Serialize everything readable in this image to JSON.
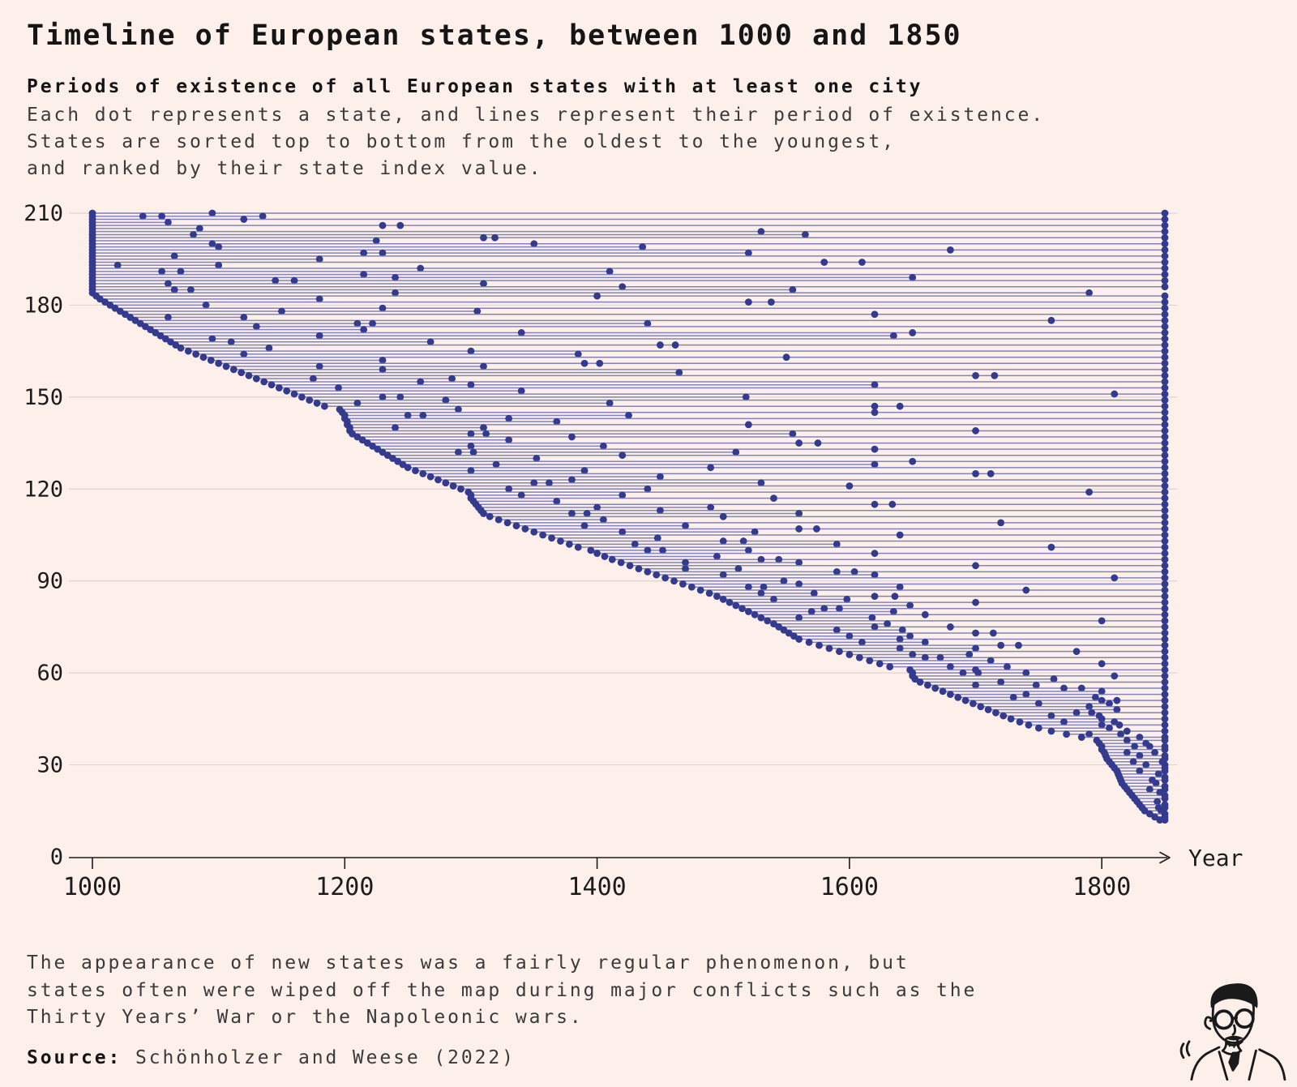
{
  "page": {
    "background": "#fdf0eb"
  },
  "header": {
    "title": "Timeline of European states, between 1000 and 1850",
    "subtitle": "Periods of existence of all European states with at least one city",
    "description_lines": [
      "Each dot represents a state, and lines represent their period of existence.",
      "States are sorted top to bottom from the oldest to the youngest,",
      "and ranked by their state index value."
    ]
  },
  "footer": {
    "note_lines": [
      "The appearance of new states was a fairly regular phenomenon, but",
      "states often were wiped off the map during major conflicts such as the",
      "Thirty Years’ War or the Napoleonic wars."
    ],
    "source_label": "Source:",
    "source_text": " Schönholzer and Weese (2022)",
    "logo": "man-with-glasses-caricature"
  },
  "chart_data": {
    "type": "scatter",
    "variant": "dumbbell-timeline",
    "title": "Timeline of European states, between 1000 and 1850",
    "xlabel": "Year",
    "ylabel": "",
    "xlim": [
      1000,
      1850
    ],
    "ylim": [
      0,
      210
    ],
    "x_ticks": [
      1000,
      1200,
      1400,
      1600,
      1800
    ],
    "y_ticks": [
      0,
      30,
      60,
      90,
      120,
      150,
      180,
      210
    ],
    "grid": "horizontal",
    "legend": "none",
    "colors": {
      "dot": "#343a8e",
      "line": "#7478b4",
      "grid": "#ddd5d2",
      "axis": "#1c1c1c",
      "text": "#1c1c1c",
      "background": "#fdf0eb"
    },
    "series_description": "Each row is one state: [state_index, start_year, end_year, [event_years]] (values estimated from plot)",
    "states": [
      [
        210,
        1000,
        1850,
        [
          1095
        ]
      ],
      [
        209,
        1000,
        1135,
        [
          1040,
          1055
        ]
      ],
      [
        208,
        1000,
        1850,
        [
          1120
        ]
      ],
      [
        207,
        1000,
        1060
      ],
      [
        206,
        1000,
        1850,
        [
          1230,
          1244
        ]
      ],
      [
        205,
        1000,
        1085
      ],
      [
        204,
        1000,
        1850,
        [
          1530
        ]
      ],
      [
        203,
        1000,
        1565,
        [
          1080
        ]
      ],
      [
        202,
        1000,
        1850,
        [
          1310,
          1319
        ]
      ],
      [
        201,
        1000,
        1225
      ],
      [
        200,
        1000,
        1850,
        [
          1095,
          1350
        ]
      ],
      [
        199,
        1000,
        1436,
        [
          1100
        ]
      ],
      [
        198,
        1000,
        1850,
        [
          1680
        ]
      ],
      [
        197,
        1000,
        1520,
        [
          1215,
          1230
        ]
      ],
      [
        196,
        1000,
        1850,
        [
          1065
        ]
      ],
      [
        195,
        1000,
        1180
      ],
      [
        194,
        1000,
        1850,
        [
          1580,
          1610
        ]
      ],
      [
        193,
        1000,
        1100,
        [
          1020
        ]
      ],
      [
        192,
        1000,
        1850,
        [
          1260
        ]
      ],
      [
        191,
        1000,
        1410,
        [
          1055,
          1070
        ]
      ],
      [
        190,
        1000,
        1850,
        [
          1215
        ]
      ],
      [
        189,
        1000,
        1650,
        [
          1240
        ]
      ],
      [
        188,
        1000,
        1850,
        [
          1145,
          1160
        ]
      ],
      [
        187,
        1000,
        1310,
        [
          1060
        ]
      ],
      [
        186,
        1000,
        1850,
        [
          1420
        ]
      ],
      [
        185,
        1000,
        1555,
        [
          1065,
          1078
        ]
      ],
      [
        184,
        1000,
        1790,
        [
          1240
        ]
      ],
      [
        183,
        1003,
        1850,
        [
          1400
        ]
      ],
      [
        182,
        1006,
        1180
      ],
      [
        181,
        1010,
        1850,
        [
          1520,
          1538
        ]
      ],
      [
        180,
        1014,
        1090
      ],
      [
        179,
        1018,
        1850,
        [
          1230
        ]
      ],
      [
        178,
        1022,
        1305,
        [
          1150
        ]
      ],
      [
        177,
        1026,
        1850,
        [
          1620
        ]
      ],
      [
        176,
        1030,
        1120,
        [
          1060
        ]
      ],
      [
        175,
        1034,
        1850,
        [
          1760
        ]
      ],
      [
        174,
        1038,
        1440,
        [
          1210,
          1222
        ]
      ],
      [
        173,
        1042,
        1850,
        [
          1130
        ]
      ],
      [
        172,
        1046,
        1215
      ],
      [
        171,
        1050,
        1850,
        [
          1340,
          1650
        ]
      ],
      [
        170,
        1054,
        1635,
        [
          1180
        ]
      ],
      [
        169,
        1058,
        1850,
        [
          1095
        ]
      ],
      [
        168,
        1062,
        1268,
        [
          1110
        ]
      ],
      [
        167,
        1066,
        1850,
        [
          1450,
          1462
        ]
      ],
      [
        166,
        1070,
        1140
      ],
      [
        165,
        1076,
        1850,
        [
          1300
        ]
      ],
      [
        164,
        1082,
        1385,
        [
          1120
        ]
      ],
      [
        163,
        1088,
        1850,
        [
          1550
        ]
      ],
      [
        162,
        1094,
        1230
      ],
      [
        161,
        1100,
        1850,
        [
          1390,
          1402
        ]
      ],
      [
        160,
        1106,
        1310,
        [
          1180
        ]
      ],
      [
        159,
        1112,
        1850,
        [
          1230
        ]
      ],
      [
        158,
        1118,
        1465
      ],
      [
        157,
        1124,
        1850,
        [
          1700,
          1715
        ]
      ],
      [
        156,
        1130,
        1285,
        [
          1175
        ]
      ],
      [
        155,
        1136,
        1850,
        [
          1260
        ]
      ],
      [
        154,
        1142,
        1620,
        [
          1300
        ]
      ],
      [
        153,
        1148,
        1850,
        [
          1195
        ]
      ],
      [
        152,
        1154,
        1340
      ],
      [
        151,
        1160,
        1850,
        [
          1810
        ]
      ],
      [
        150,
        1166,
        1518,
        [
          1230,
          1244
        ]
      ],
      [
        149,
        1172,
        1850,
        [
          1280
        ]
      ],
      [
        148,
        1178,
        1410,
        [
          1210
        ]
      ],
      [
        147,
        1184,
        1850,
        [
          1620,
          1640
        ]
      ],
      [
        146,
        1196,
        1290
      ],
      [
        145,
        1198,
        1850,
        [
          1620
        ]
      ],
      [
        144,
        1200,
        1425,
        [
          1250,
          1262
        ]
      ],
      [
        143,
        1200,
        1850,
        [
          1330
        ]
      ],
      [
        142,
        1202,
        1368
      ],
      [
        141,
        1202,
        1850,
        [
          1520
        ]
      ],
      [
        140,
        1204,
        1310,
        [
          1240
        ]
      ],
      [
        139,
        1204,
        1850,
        [
          1700
        ]
      ],
      [
        138,
        1206,
        1555,
        [
          1300,
          1312
        ]
      ],
      [
        137,
        1210,
        1850,
        [
          1380
        ]
      ],
      [
        136,
        1214,
        1330
      ],
      [
        135,
        1218,
        1850,
        [
          1560,
          1575
        ]
      ],
      [
        134,
        1222,
        1405,
        [
          1300
        ]
      ],
      [
        133,
        1226,
        1850,
        [
          1620
        ]
      ],
      [
        132,
        1230,
        1510,
        [
          1290,
          1302
        ]
      ],
      [
        131,
        1234,
        1850,
        [
          1420
        ]
      ],
      [
        130,
        1238,
        1352
      ],
      [
        129,
        1242,
        1850,
        [
          1650
        ]
      ],
      [
        128,
        1246,
        1620,
        [
          1320
        ]
      ],
      [
        127,
        1250,
        1850,
        [
          1490
        ]
      ],
      [
        126,
        1256,
        1390,
        [
          1300
        ]
      ],
      [
        125,
        1262,
        1850,
        [
          1700,
          1712
        ]
      ],
      [
        124,
        1268,
        1450
      ],
      [
        123,
        1274,
        1850,
        [
          1380
        ]
      ],
      [
        122,
        1280,
        1530,
        [
          1350,
          1362
        ]
      ],
      [
        121,
        1286,
        1850,
        [
          1600
        ]
      ],
      [
        120,
        1292,
        1440,
        [
          1330
        ]
      ],
      [
        119,
        1298,
        1850,
        [
          1790
        ]
      ],
      [
        118,
        1300,
        1420,
        [
          1340
        ]
      ],
      [
        117,
        1300,
        1850,
        [
          1540
        ]
      ],
      [
        116,
        1302,
        1368
      ],
      [
        115,
        1304,
        1850,
        [
          1620,
          1634
        ]
      ],
      [
        114,
        1306,
        1490,
        [
          1400
        ]
      ],
      [
        113,
        1308,
        1850,
        [
          1450
        ]
      ],
      [
        112,
        1310,
        1560,
        [
          1380,
          1392
        ]
      ],
      [
        111,
        1315,
        1850,
        [
          1500
        ]
      ],
      [
        110,
        1322,
        1405
      ],
      [
        109,
        1329,
        1850,
        [
          1720
        ]
      ],
      [
        108,
        1336,
        1470,
        [
          1390
        ]
      ],
      [
        107,
        1343,
        1850,
        [
          1560,
          1574
        ]
      ],
      [
        106,
        1350,
        1525,
        [
          1420
        ]
      ],
      [
        105,
        1357,
        1850,
        [
          1640
        ]
      ],
      [
        104,
        1364,
        1448
      ],
      [
        103,
        1371,
        1850,
        [
          1500,
          1516
        ]
      ],
      [
        102,
        1378,
        1590,
        [
          1430
        ]
      ],
      [
        101,
        1385,
        1850,
        [
          1760
        ]
      ],
      [
        100,
        1395,
        1520,
        [
          1440,
          1452
        ]
      ],
      [
        99,
        1400,
        1850,
        [
          1620
        ]
      ],
      [
        98,
        1406,
        1495
      ],
      [
        97,
        1412,
        1850,
        [
          1530,
          1544
        ]
      ],
      [
        96,
        1419,
        1560,
        [
          1470
        ]
      ],
      [
        95,
        1426,
        1850,
        [
          1700
        ]
      ],
      [
        94,
        1433,
        1512,
        [
          1470
        ]
      ],
      [
        93,
        1440,
        1850,
        [
          1590,
          1604
        ]
      ],
      [
        92,
        1447,
        1620,
        [
          1500
        ]
      ],
      [
        91,
        1454,
        1850,
        [
          1810
        ]
      ],
      [
        90,
        1461,
        1548
      ],
      [
        89,
        1468,
        1850,
        [
          1560
        ]
      ],
      [
        88,
        1475,
        1640,
        [
          1520,
          1532
        ]
      ],
      [
        87,
        1482,
        1850,
        [
          1740
        ]
      ],
      [
        86,
        1489,
        1572,
        [
          1530
        ]
      ],
      [
        85,
        1495,
        1850,
        [
          1620,
          1636
        ]
      ],
      [
        84,
        1500,
        1598,
        [
          1540
        ]
      ],
      [
        83,
        1505,
        1850,
        [
          1700
        ]
      ],
      [
        82,
        1510,
        1648
      ],
      [
        81,
        1515,
        1850,
        [
          1580,
          1592
        ]
      ],
      [
        80,
        1520,
        1635,
        [
          1570
        ]
      ],
      [
        79,
        1525,
        1850,
        [
          1660
        ]
      ],
      [
        78,
        1530,
        1618,
        [
          1560
        ]
      ],
      [
        77,
        1535,
        1850,
        [
          1800
        ]
      ],
      [
        76,
        1540,
        1630
      ],
      [
        75,
        1544,
        1850,
        [
          1620,
          1680
        ]
      ],
      [
        74,
        1548,
        1642,
        [
          1590
        ]
      ],
      [
        73,
        1552,
        1850,
        [
          1700,
          1714
        ]
      ],
      [
        72,
        1556,
        1648,
        [
          1600
        ]
      ],
      [
        71,
        1560,
        1850,
        [
          1640
        ]
      ],
      [
        70,
        1568,
        1660,
        [
          1610
        ]
      ],
      [
        69,
        1576,
        1850,
        [
          1720,
          1734
        ]
      ],
      [
        68,
        1584,
        1700,
        [
          1640
        ]
      ],
      [
        67,
        1592,
        1850,
        [
          1780
        ]
      ],
      [
        66,
        1600,
        1695,
        [
          1650
        ]
      ],
      [
        65,
        1608,
        1850,
        [
          1660,
          1672
        ]
      ],
      [
        64,
        1616,
        1712
      ],
      [
        63,
        1624,
        1850,
        [
          1800
        ]
      ],
      [
        62,
        1632,
        1725,
        [
          1680
        ]
      ],
      [
        61,
        1648,
        1850,
        [
          1700
        ]
      ],
      [
        60,
        1650,
        1740,
        [
          1690,
          1702
        ]
      ],
      [
        59,
        1650,
        1850,
        [
          1810
        ]
      ],
      [
        58,
        1652,
        1762
      ],
      [
        57,
        1656,
        1850,
        [
          1720
        ]
      ],
      [
        56,
        1662,
        1748,
        [
          1700
        ]
      ],
      [
        55,
        1668,
        1850,
        [
          1770,
          1784
        ]
      ],
      [
        54,
        1674,
        1800
      ],
      [
        53,
        1680,
        1850,
        [
          1740
        ]
      ],
      [
        52,
        1686,
        1795,
        [
          1730
        ]
      ],
      [
        51,
        1692,
        1850,
        [
          1800,
          1812
        ]
      ],
      [
        50,
        1698,
        1806,
        [
          1750
        ]
      ],
      [
        49,
        1704,
        1850,
        [
          1790
        ]
      ],
      [
        48,
        1710,
        1812
      ],
      [
        47,
        1716,
        1850,
        [
          1780,
          1792
        ]
      ],
      [
        46,
        1722,
        1798,
        [
          1760
        ]
      ],
      [
        45,
        1728,
        1850,
        [
          1800
        ]
      ],
      [
        44,
        1735,
        1810,
        [
          1770
        ]
      ],
      [
        43,
        1742,
        1850,
        [
          1800,
          1814
        ]
      ],
      [
        42,
        1750,
        1806
      ],
      [
        41,
        1760,
        1850,
        [
          1820
        ]
      ],
      [
        40,
        1772,
        1815,
        [
          1790
        ]
      ],
      [
        39,
        1784,
        1850,
        [
          1830
        ]
      ],
      [
        38,
        1796,
        1850,
        [
          1820
        ]
      ],
      [
        37,
        1798,
        1835
      ],
      [
        36,
        1800,
        1850,
        [
          1826,
          1838
        ]
      ],
      [
        35,
        1800,
        1850
      ],
      [
        34,
        1802,
        1842,
        [
          1820
        ]
      ],
      [
        33,
        1803,
        1850,
        [
          1830
        ]
      ],
      [
        32,
        1804,
        1850
      ],
      [
        31,
        1806,
        1848,
        [
          1825
        ]
      ],
      [
        30,
        1808,
        1850,
        [
          1835
        ]
      ],
      [
        29,
        1810,
        1850
      ],
      [
        28,
        1812,
        1850,
        [
          1830
        ]
      ],
      [
        27,
        1813,
        1845
      ],
      [
        26,
        1814,
        1850
      ],
      [
        25,
        1815,
        1850,
        [
          1840
        ]
      ],
      [
        24,
        1816,
        1843
      ],
      [
        23,
        1818,
        1850
      ],
      [
        22,
        1820,
        1850,
        [
          1838
        ]
      ],
      [
        21,
        1822,
        1846
      ],
      [
        20,
        1824,
        1850
      ],
      [
        19,
        1826,
        1850
      ],
      [
        18,
        1828,
        1844
      ],
      [
        17,
        1830,
        1850
      ],
      [
        16,
        1832,
        1850,
        [
          1845
        ]
      ],
      [
        15,
        1834,
        1847
      ],
      [
        14,
        1838,
        1850
      ],
      [
        13,
        1842,
        1850
      ],
      [
        12,
        1846,
        1850
      ]
    ]
  }
}
